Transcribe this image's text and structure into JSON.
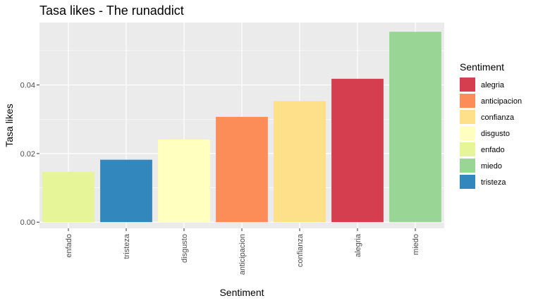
{
  "chart_data": {
    "type": "bar",
    "title": "Tasa likes - The runaddict",
    "xlabel": "Sentiment",
    "ylabel": "Tasa likes",
    "categories": [
      "enfado",
      "tristeza",
      "disgusto",
      "anticipacion",
      "confianza",
      "alegria",
      "miedo"
    ],
    "values": [
      0.0147,
      0.0182,
      0.0241,
      0.0307,
      0.0353,
      0.0418,
      0.0555
    ],
    "bar_colors": [
      "#e6f598",
      "#3288bd",
      "#ffffbf",
      "#fc8d59",
      "#fee08b",
      "#d53e4f",
      "#99d594"
    ],
    "ylim": [
      -0.0018,
      0.0582
    ],
    "yticks": [
      0.0,
      0.02,
      0.04
    ],
    "ytick_labels": [
      "0.00",
      "0.02",
      "0.04"
    ],
    "grid": true,
    "panel_background": "#ebebeb",
    "legend": {
      "title": "Sentiment",
      "position": "right",
      "entries": [
        {
          "label": "alegria",
          "color": "#d53e4f"
        },
        {
          "label": "anticipacion",
          "color": "#fc8d59"
        },
        {
          "label": "confianza",
          "color": "#fee08b"
        },
        {
          "label": "disgusto",
          "color": "#ffffbf"
        },
        {
          "label": "enfado",
          "color": "#e6f598"
        },
        {
          "label": "miedo",
          "color": "#99d594"
        },
        {
          "label": "tristeza",
          "color": "#3288bd"
        }
      ]
    }
  }
}
